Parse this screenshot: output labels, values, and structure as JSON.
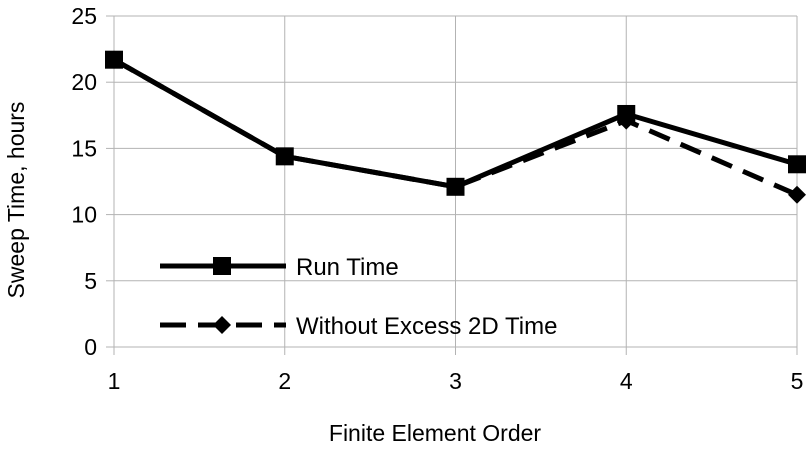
{
  "chart_data": {
    "type": "line",
    "xlabel": "Finite Element Order",
    "ylabel": "Sweep Time, hours",
    "x": [
      1,
      2,
      3,
      4,
      5
    ],
    "xlim": [
      1,
      5
    ],
    "ylim": [
      0,
      25
    ],
    "yticks": [
      0,
      5,
      10,
      15,
      20,
      25
    ],
    "xticks": [
      1,
      2,
      3,
      4,
      5
    ],
    "grid": true,
    "legend_position": "lower-left",
    "series": [
      {
        "name": "Run Time",
        "values": [
          21.7,
          14.4,
          12.1,
          17.6,
          13.8
        ],
        "line_style": "solid",
        "marker": "square",
        "color": "#000000"
      },
      {
        "name": "Without Excess 2D Time",
        "values": [
          21.7,
          14.4,
          12.1,
          17.1,
          11.5
        ],
        "line_style": "dashed",
        "marker": "diamond",
        "color": "#000000"
      }
    ]
  }
}
